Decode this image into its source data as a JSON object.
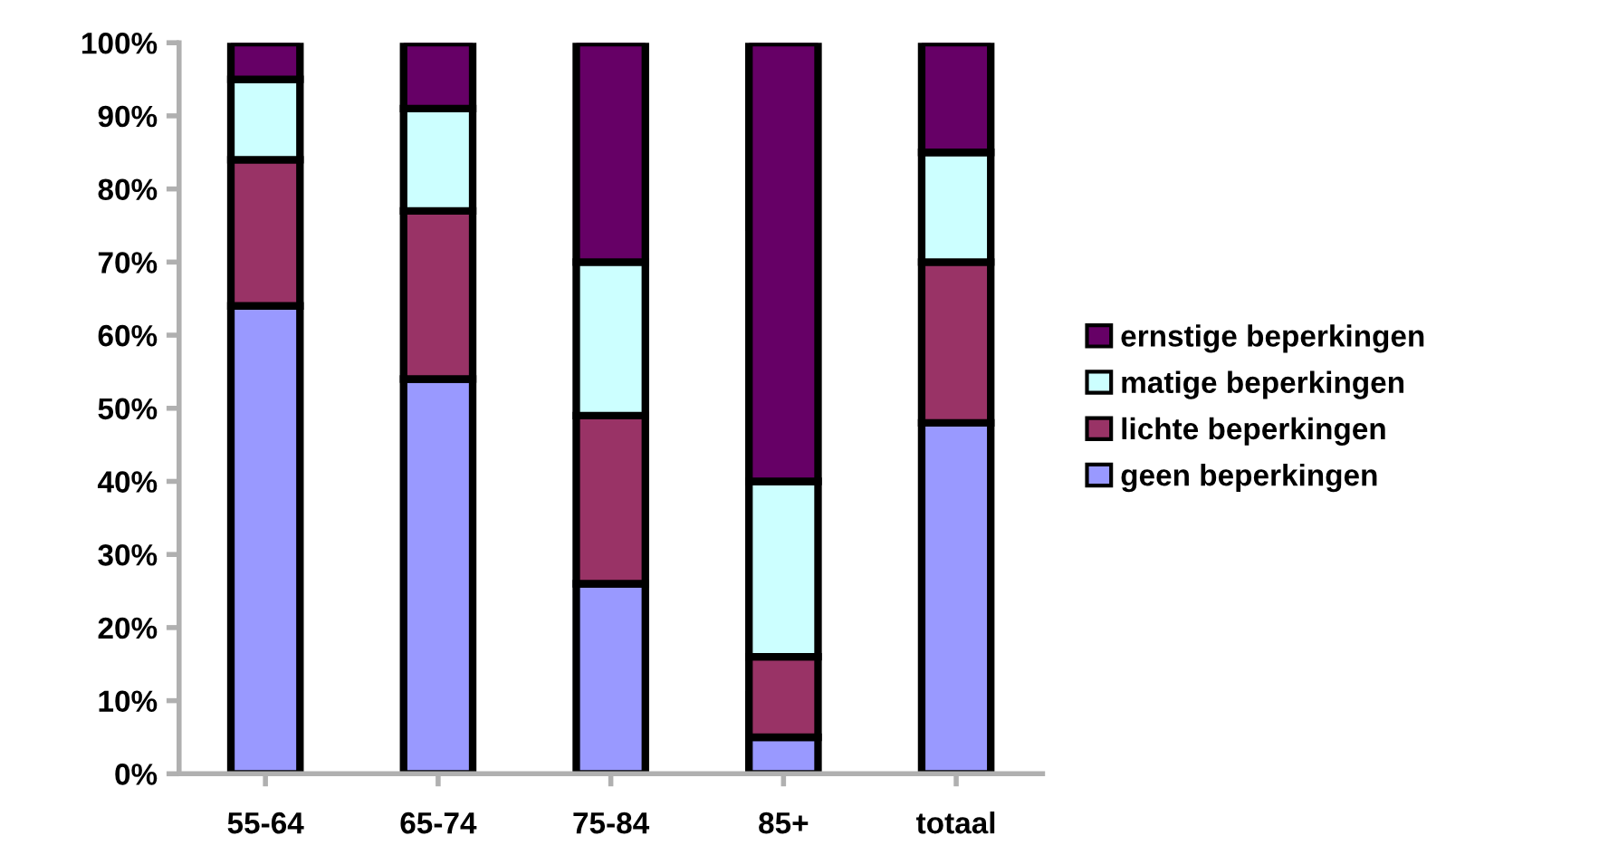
{
  "chart_data": {
    "type": "bar",
    "stacked": true,
    "categories": [
      "55-64",
      "65-74",
      "75-84",
      "85+",
      "totaal"
    ],
    "series": [
      {
        "name": "geen beperkingen",
        "color": "#9999ff",
        "values": [
          64,
          54,
          26,
          5,
          48
        ]
      },
      {
        "name": "lichte beperkingen",
        "color": "#993366",
        "values": [
          20,
          23,
          23,
          11,
          22
        ]
      },
      {
        "name": "matige beperkingen",
        "color": "#ccffff",
        "values": [
          11,
          14,
          21,
          24,
          15
        ]
      },
      {
        "name": "ernstige beperkingen",
        "color": "#660066",
        "values": [
          5,
          9,
          30,
          60,
          15
        ]
      }
    ],
    "ylim": [
      0,
      100
    ],
    "yticks": [
      {
        "value": 0,
        "label": "0%"
      },
      {
        "value": 10,
        "label": "10%"
      },
      {
        "value": 20,
        "label": "20%"
      },
      {
        "value": 30,
        "label": "30%"
      },
      {
        "value": 40,
        "label": "40%"
      },
      {
        "value": 50,
        "label": "50%"
      },
      {
        "value": 60,
        "label": "60%"
      },
      {
        "value": 70,
        "label": "70%"
      },
      {
        "value": 80,
        "label": "80%"
      },
      {
        "value": 90,
        "label": "90%"
      },
      {
        "value": 100,
        "label": "100%"
      }
    ],
    "grid": false,
    "legend": "right"
  }
}
